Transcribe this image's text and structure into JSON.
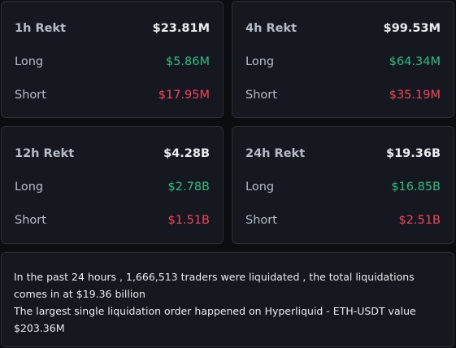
{
  "cards": [
    {
      "title": "1h Rekt",
      "total": "$23.81M",
      "long_label": "Long",
      "long": "$5.86M",
      "short_label": "Short",
      "short": "$17.95M"
    },
    {
      "title": "4h Rekt",
      "total": "$99.53M",
      "long_label": "Long",
      "long": "$64.34M",
      "short_label": "Short",
      "short": "$35.19M"
    },
    {
      "title": "12h Rekt",
      "total": "$4.28B",
      "long_label": "Long",
      "long": "$2.78B",
      "short_label": "Short",
      "short": "$1.51B"
    },
    {
      "title": "24h Rekt",
      "total": "$19.36B",
      "long_label": "Long",
      "long": "$16.85B",
      "short_label": "Short",
      "short": "$2.51B"
    }
  ],
  "summary": {
    "line1": "In the past 24 hours , 1,666,513 traders were liquidated , the total liquidations comes in at $19.36 billion",
    "line2": "The largest single liquidation order happened on Hyperliquid - ETH-USDT value $203.36M"
  },
  "colors": {
    "background": "#0b0e11",
    "card": "#15181f",
    "border": "#2b2f36",
    "long": "#2ebd85",
    "short": "#f6465d"
  }
}
